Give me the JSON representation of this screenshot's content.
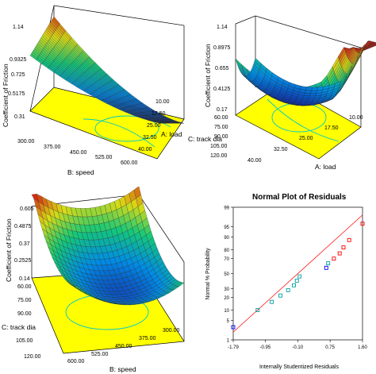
{
  "chart_data": [
    {
      "type": "surface",
      "panel": "top-left",
      "zlabel": "Coefficient of Friction",
      "zticks": [
        "0.31",
        "0.5175",
        "0.725",
        "0.9325",
        "1.14"
      ],
      "xlabel": "B: speed",
      "xticks": [
        "300.00",
        "375.00",
        "450.00",
        "525.00",
        "600.00"
      ],
      "ylabel": "A: load",
      "yticks": [
        "10.00",
        "17.50",
        "25.00",
        "32.50",
        "40.00"
      ],
      "zlim": [
        0.31,
        1.14
      ],
      "surface_corners": {
        "speed300_load10": 1.14,
        "speed600_load10": 0.52,
        "speed300_load40": 0.72,
        "speed600_load40": 0.34
      },
      "contour_color": "#00c8c8",
      "floor_color": "#ffff00"
    },
    {
      "type": "surface",
      "panel": "top-right",
      "zlabel": "Coefficient of Friction",
      "zticks": [
        "0.17",
        "0.4125",
        "0.655",
        "0.8975",
        "1.14"
      ],
      "xlabel": "A: load",
      "xticks": [
        "40.00",
        "32.50",
        "25.00",
        "17.50",
        "10.00"
      ],
      "ylabel": "C: track dia",
      "yticks": [
        "60.00",
        "75.00",
        "90.00",
        "105.00",
        "120.00"
      ],
      "zlim": [
        0.17,
        1.14
      ],
      "surface_shape": "bowl, minimum near load 25 / track dia 90, rising to 1.14 at load 10",
      "contour_color": "#00c8c8",
      "floor_color": "#ffff00"
    },
    {
      "type": "surface",
      "panel": "bottom-left",
      "zlabel": "Coefficient of Friction",
      "zticks": [
        "0.14",
        "0.2525",
        "0.37",
        "0.4875",
        "0.605"
      ],
      "xlabel": "B: speed",
      "xticks": [
        "600.00",
        "525.00",
        "450.00",
        "375.00",
        "300.00"
      ],
      "ylabel": "C: track dia",
      "yticks": [
        "60.00",
        "75.00",
        "90.00",
        "105.00",
        "120.00"
      ],
      "zlim": [
        0.14,
        0.605
      ],
      "surface_shape": "saddle-like bowl, highest 0.605 at track dia 60",
      "contour_color": "#00c8c8",
      "floor_color": "#ffff00"
    },
    {
      "type": "scatter",
      "panel": "bottom-right",
      "title": "Normal Plot of Residuals",
      "xlabel": "Internally Studentized Residuals",
      "ylabel": "Normal % Probability",
      "xticks": [
        "-1.79",
        "-0.95",
        "-0.10",
        "0.75",
        "1.60"
      ],
      "yticks": [
        "1",
        "5",
        "10",
        "20",
        "30",
        "50",
        "70",
        "80",
        "90",
        "95",
        "99"
      ],
      "xlim": [
        -1.79,
        1.6
      ],
      "ylim": [
        1,
        99
      ],
      "points": [
        {
          "x": -1.79,
          "p": 3.0,
          "color": "#0000ff"
        },
        {
          "x": -1.15,
          "p": 10.0,
          "color": "#00a0a0"
        },
        {
          "x": -0.78,
          "p": 16.0,
          "color": "#00a0a0"
        },
        {
          "x": -0.55,
          "p": 22.0,
          "color": "#00a0a0"
        },
        {
          "x": -0.35,
          "p": 28.0,
          "color": "#00a0a0"
        },
        {
          "x": -0.2,
          "p": 34.0,
          "color": "#00a0a0"
        },
        {
          "x": -0.12,
          "p": 40.0,
          "color": "#00a0a0"
        },
        {
          "x": -0.05,
          "p": 46.0,
          "color": "#00a0a0"
        },
        {
          "x": 0.65,
          "p": 58.0,
          "color": "#0000ff"
        },
        {
          "x": 0.7,
          "p": 64.0,
          "color": "#00a0a0"
        },
        {
          "x": 0.85,
          "p": 70.0,
          "color": "#ff0000"
        },
        {
          "x": 1.0,
          "p": 76.0,
          "color": "#ff0000"
        },
        {
          "x": 1.1,
          "p": 82.0,
          "color": "#ff0000"
        },
        {
          "x": 1.25,
          "p": 88.0,
          "color": "#ff0000"
        },
        {
          "x": 1.6,
          "p": 96.0,
          "color": "#ff0000"
        }
      ],
      "fit_line": {
        "x": [
          -1.79,
          1.6
        ],
        "p": [
          2.0,
          98.0
        ],
        "color": "#ff0000"
      }
    }
  ]
}
